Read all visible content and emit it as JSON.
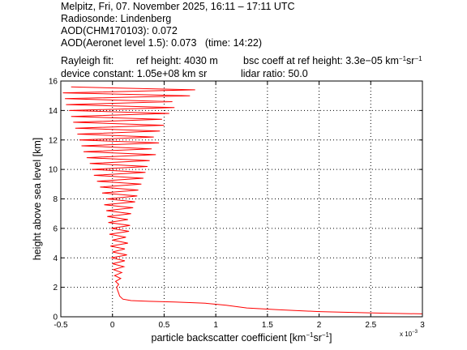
{
  "header": {
    "line1": "Melpitz, Fri, 07. November 2025, 16:11 – 17:11 UTC",
    "line2": "Radiosonde: Lindenberg",
    "line3": "AOD(CHM170103): 0.072",
    "line4": "AOD(Aeronet level 1.5): 0.073   (time: 14:22)",
    "rayleigh_label": "Rayleigh fit:",
    "ref_height": "ref height: 4030 m",
    "bsc_coeff_prefix": "bsc coeff at ref height: 3.3e−05 km",
    "device_constant": "device constant: 1.05e+08 km sr",
    "lidar_ratio": "lidar ratio: 50.0"
  },
  "chart_data": {
    "type": "line",
    "title": "",
    "xlabel": "particle backscatter coefficient [km⁻¹sr⁻¹]",
    "xlabel_main": "particle backscatter coefficient [km",
    "xlabel_sup1": "−1",
    "xlabel_mid": "sr",
    "xlabel_sup2": "−1",
    "xlabel_end": "]",
    "ylabel": "height above sea level [km]",
    "x_multiplier": "x 10",
    "x_multiplier_exp": "−3",
    "xlim": [
      -0.5,
      3.0
    ],
    "ylim": [
      0,
      16
    ],
    "xticks": [
      -0.5,
      0,
      0.5,
      1,
      1.5,
      2,
      2.5,
      3
    ],
    "xtick_labels": [
      "-0.5",
      "0",
      "0.5",
      "1",
      "1.5",
      "2",
      "2.5",
      "3"
    ],
    "yticks": [
      0,
      2,
      4,
      6,
      8,
      10,
      12,
      14,
      16
    ],
    "ytick_labels": [
      "0",
      "2",
      "4",
      "6",
      "8",
      "10",
      "12",
      "14",
      "16"
    ],
    "grid": true,
    "series": [
      {
        "color": "#ff0000",
        "x_units": "1e-3 km^-1 sr^-1",
        "points": [
          [
            3.0,
            0.2
          ],
          [
            2.6,
            0.25
          ],
          [
            2.0,
            0.35
          ],
          [
            1.6,
            0.48
          ],
          [
            1.3,
            0.6
          ],
          [
            1.1,
            0.78
          ],
          [
            0.9,
            0.92
          ],
          [
            0.6,
            1.0
          ],
          [
            0.35,
            1.05
          ],
          [
            0.18,
            1.1
          ],
          [
            0.1,
            1.2
          ],
          [
            0.07,
            1.4
          ],
          [
            0.06,
            1.6
          ],
          [
            0.05,
            1.8
          ],
          [
            0.04,
            2.0
          ],
          [
            0.06,
            2.2
          ],
          [
            0.03,
            2.4
          ],
          [
            0.08,
            2.6
          ],
          [
            0.02,
            2.8
          ],
          [
            0.09,
            3.0
          ],
          [
            0.01,
            3.2
          ],
          [
            0.11,
            3.4
          ],
          [
            0.0,
            3.6
          ],
          [
            0.12,
            3.8
          ],
          [
            -0.01,
            4.0
          ],
          [
            0.14,
            4.2
          ],
          [
            0.0,
            4.4
          ],
          [
            0.12,
            4.6
          ],
          [
            -0.02,
            4.8
          ],
          [
            0.15,
            5.0
          ],
          [
            0.0,
            5.2
          ],
          [
            0.13,
            5.4
          ],
          [
            -0.03,
            5.6
          ],
          [
            0.16,
            5.8
          ],
          [
            -0.01,
            6.0
          ],
          [
            0.17,
            6.2
          ],
          [
            -0.04,
            6.4
          ],
          [
            0.15,
            6.6
          ],
          [
            -0.05,
            6.8
          ],
          [
            0.18,
            7.0
          ],
          [
            -0.06,
            7.2
          ],
          [
            0.2,
            7.4
          ],
          [
            -0.08,
            7.6
          ],
          [
            0.22,
            7.8
          ],
          [
            -0.05,
            8.0
          ],
          [
            0.24,
            8.2
          ],
          [
            -0.1,
            8.4
          ],
          [
            0.25,
            8.6
          ],
          [
            -0.12,
            8.8
          ],
          [
            0.28,
            9.0
          ],
          [
            -0.15,
            9.2
          ],
          [
            0.3,
            9.4
          ],
          [
            -0.18,
            9.6
          ],
          [
            0.32,
            9.8
          ],
          [
            -0.2,
            10.0
          ],
          [
            0.34,
            10.2
          ],
          [
            -0.22,
            10.4
          ],
          [
            0.36,
            10.6
          ],
          [
            -0.25,
            10.8
          ],
          [
            0.42,
            11.0
          ],
          [
            -0.28,
            11.2
          ],
          [
            0.38,
            11.4
          ],
          [
            -0.3,
            11.6
          ],
          [
            0.45,
            11.8
          ],
          [
            -0.32,
            12.0
          ],
          [
            0.4,
            12.2
          ],
          [
            -0.34,
            12.4
          ],
          [
            0.46,
            12.6
          ],
          [
            -0.36,
            12.8
          ],
          [
            0.5,
            13.0
          ],
          [
            -0.38,
            13.2
          ],
          [
            0.48,
            13.4
          ],
          [
            -0.4,
            13.6
          ],
          [
            0.55,
            13.8
          ],
          [
            -0.42,
            14.0
          ],
          [
            0.6,
            14.2
          ],
          [
            -0.45,
            14.4
          ],
          [
            0.58,
            14.6
          ],
          [
            -0.46,
            14.8
          ],
          [
            0.75,
            15.0
          ],
          [
            -0.48,
            15.2
          ],
          [
            0.8,
            15.4
          ],
          [
            -0.4,
            15.6
          ]
        ]
      }
    ]
  }
}
